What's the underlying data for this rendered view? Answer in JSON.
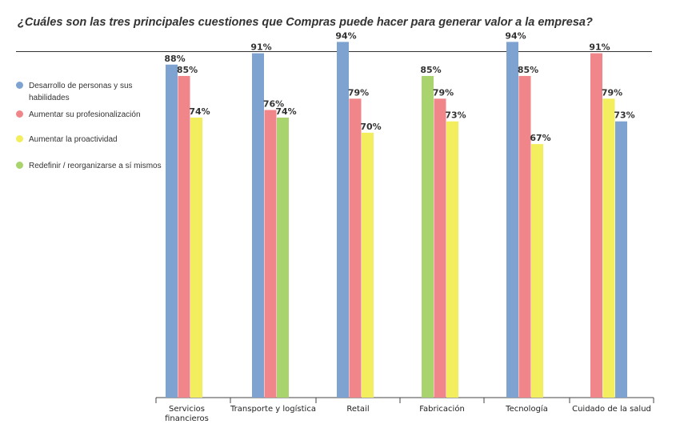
{
  "chart_data": {
    "type": "bar",
    "title": "¿Cuáles son las tres principales cuestiones que Compras puede hacer para generar valor a la empresa?",
    "ylim": [
      0,
      100
    ],
    "legend_position": "left",
    "legend": [
      {
        "label": "Desarrollo de personas y sus habilidades",
        "color": "#7fa3d1"
      },
      {
        "label": "Aumentar  su profesionalización",
        "color": "#f0868a"
      },
      {
        "label": "Aumentar la proactividad",
        "color": "#f2ee5e"
      },
      {
        "label": "Redefinir / reorganizarse a sí mismos",
        "color": "#a9d36c"
      }
    ],
    "groups": [
      {
        "category": "Servicios financieros",
        "bars": [
          {
            "series": 0,
            "value": 88,
            "label": "88%"
          },
          {
            "series": 1,
            "value": 85,
            "label": "85%"
          },
          {
            "series": 2,
            "value": 74,
            "label": "74%"
          }
        ]
      },
      {
        "category": "Transporte y logística",
        "bars": [
          {
            "series": 0,
            "value": 91,
            "label": "91%"
          },
          {
            "series": 1,
            "value": 76,
            "label": "76%"
          },
          {
            "series": 3,
            "value": 74,
            "label": "74%"
          }
        ]
      },
      {
        "category": "Retail",
        "bars": [
          {
            "series": 0,
            "value": 94,
            "label": "94%"
          },
          {
            "series": 1,
            "value": 79,
            "label": "79%"
          },
          {
            "series": 2,
            "value": 70,
            "label": "70%"
          }
        ]
      },
      {
        "category": "Fabricación",
        "bars": [
          {
            "series": 3,
            "value": 85,
            "label": "85%"
          },
          {
            "series": 1,
            "value": 79,
            "label": "79%"
          },
          {
            "series": 2,
            "value": 73,
            "label": "73%"
          }
        ]
      },
      {
        "category": "Tecnología",
        "bars": [
          {
            "series": 0,
            "value": 94,
            "label": "94%"
          },
          {
            "series": 1,
            "value": 85,
            "label": "85%"
          },
          {
            "series": 2,
            "value": 67,
            "label": "67%"
          }
        ]
      },
      {
        "category": "Cuidado de la salud",
        "bars": [
          {
            "series": 1,
            "value": 91,
            "label": "91%"
          },
          {
            "series": 2,
            "value": 79,
            "label": "79%"
          },
          {
            "series": 0,
            "value": 73,
            "label": "73%"
          }
        ]
      }
    ]
  }
}
